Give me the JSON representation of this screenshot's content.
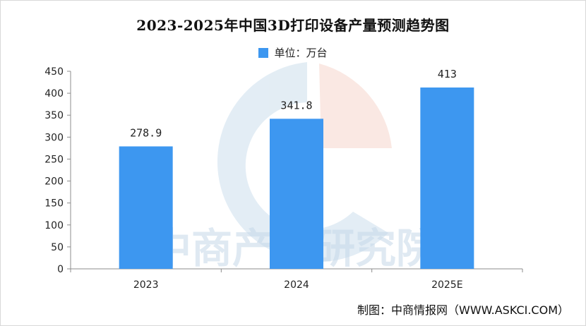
{
  "chart_data": {
    "type": "bar",
    "title": "2023-2025年中国3D打印设备产量预测趋势图",
    "legend": "单位：万台",
    "categories": [
      "2023",
      "2024",
      "2025E"
    ],
    "series": [
      {
        "name": "单位：万台",
        "values": [
          278.9,
          341.8,
          413
        ]
      }
    ],
    "data_labels": [
      "278.9",
      "341.8",
      "413"
    ],
    "ylim": [
      0,
      450
    ],
    "yticks": [
      0,
      50,
      100,
      150,
      200,
      250,
      300,
      350,
      400,
      450
    ],
    "xlabel": "",
    "ylabel": "",
    "grid": false,
    "legend_position": "top-center",
    "bar_color": "#3d97f0"
  },
  "watermark": "中商产业研究院",
  "credit": "制图：中商情报网（WWW.ASKCI.COM）"
}
